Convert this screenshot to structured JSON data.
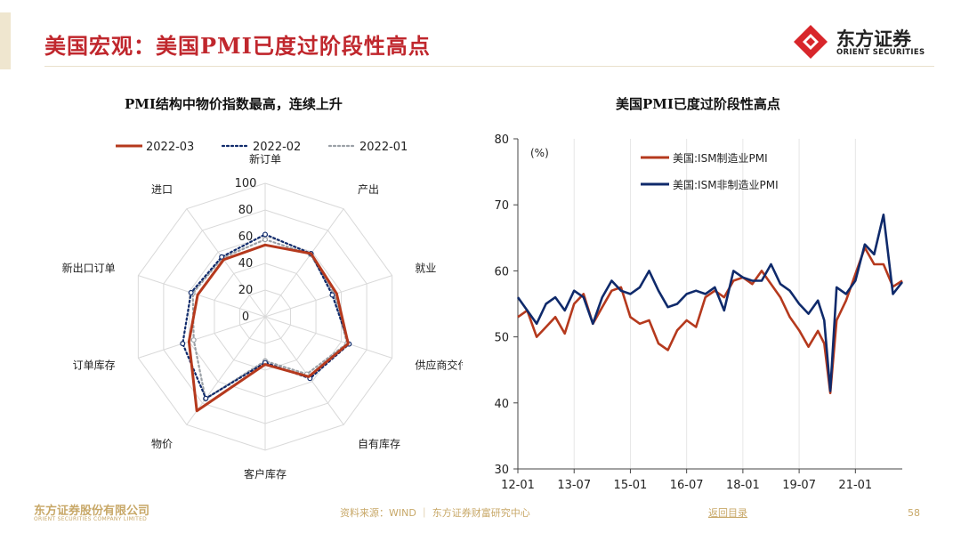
{
  "page": {
    "title": "美国宏观：美国PMI已度过阶段性高点",
    "logo_cn": "东方证券",
    "logo_en": "ORIENT SECURITIES",
    "footer_logo_cn": "东方证券股份有限公司",
    "footer_logo_en": "ORIENT SECURITIES COMPANY LIMITED",
    "source": "资料来源：WIND ｜ 东方证券财富研究中心",
    "back_link": "返回目录",
    "page_number": "58",
    "colors": {
      "title_red": "#c0272d",
      "series_red": "#b5391d",
      "series_navy": "#0f2a6b",
      "series_gray": "#9aa0a6",
      "footer_gold": "#c8a868"
    }
  },
  "chart_data": [
    {
      "type": "radar",
      "title": "PMI结构中物价指数最高，连续上升",
      "axes": [
        "新订单",
        "产出",
        "就业",
        "供应商交付",
        "自有库存",
        "客户库存",
        "物价",
        "订单库存",
        "新出口订单",
        "进口"
      ],
      "r_ticks": [
        "0",
        "20",
        "40",
        "60",
        "80",
        "100"
      ],
      "r_range": [
        0,
        100
      ],
      "legend_position": "top",
      "series": [
        {
          "name": "2022-03",
          "values": [
            53.8,
            58.5,
            56.3,
            65.4,
            55.5,
            35.7,
            87.1,
            60.0,
            53.2,
            52.9
          ]
        },
        {
          "name": "2022-02",
          "values": [
            61.7,
            58.5,
            52.9,
            66.1,
            57.1,
            34.4,
            75.6,
            65.0,
            58.4,
            55.4
          ]
        },
        {
          "name": "2022-01",
          "values": [
            57.9,
            57.8,
            54.5,
            64.6,
            53.1,
            33.1,
            76.1,
            56.3,
            57.0,
            54.6
          ]
        }
      ]
    },
    {
      "type": "line",
      "title": "美国PMI已度过阶段性高点",
      "unit_label": "(%)",
      "x_ticks": [
        "12-01",
        "13-07",
        "15-01",
        "16-07",
        "18-01",
        "19-07",
        "21-01"
      ],
      "x_range": [
        2012.0,
        2022.25
      ],
      "ylim": [
        30,
        80
      ],
      "y_ticks": [
        "30",
        "40",
        "50",
        "60",
        "70",
        "80"
      ],
      "legend_position": "top-left",
      "series": [
        {
          "name": "美国:ISM制造业PMI",
          "x": [
            2012.0,
            2012.25,
            2012.5,
            2012.75,
            2013.0,
            2013.25,
            2013.5,
            2013.75,
            2014.0,
            2014.25,
            2014.5,
            2014.75,
            2015.0,
            2015.25,
            2015.5,
            2015.75,
            2016.0,
            2016.25,
            2016.5,
            2016.75,
            2017.0,
            2017.25,
            2017.5,
            2017.75,
            2018.0,
            2018.25,
            2018.5,
            2018.75,
            2019.0,
            2019.25,
            2019.5,
            2019.75,
            2020.0,
            2020.17,
            2020.33,
            2020.5,
            2020.75,
            2021.0,
            2021.25,
            2021.5,
            2021.75,
            2022.0,
            2022.25
          ],
          "y": [
            53,
            54,
            50,
            51.5,
            53,
            50.5,
            55,
            56.5,
            52,
            54.5,
            57,
            57.5,
            53,
            52,
            52.5,
            49,
            48,
            51,
            52.5,
            51.5,
            56,
            57,
            56,
            58.5,
            59,
            58,
            60,
            58,
            56,
            53,
            51,
            48.5,
            50.9,
            49,
            41.5,
            52.5,
            55.5,
            59.5,
            63.5,
            61,
            61,
            57.6,
            58.5
          ]
        },
        {
          "name": "美国:ISM非制造业PMI",
          "x": [
            2012.0,
            2012.25,
            2012.5,
            2012.75,
            2013.0,
            2013.25,
            2013.5,
            2013.75,
            2014.0,
            2014.25,
            2014.5,
            2014.75,
            2015.0,
            2015.25,
            2015.5,
            2015.75,
            2016.0,
            2016.25,
            2016.5,
            2016.75,
            2017.0,
            2017.25,
            2017.5,
            2017.75,
            2018.0,
            2018.25,
            2018.5,
            2018.75,
            2019.0,
            2019.25,
            2019.5,
            2019.75,
            2020.0,
            2020.17,
            2020.33,
            2020.5,
            2020.75,
            2021.0,
            2021.25,
            2021.5,
            2021.75,
            2022.0,
            2022.25
          ],
          "y": [
            56,
            54,
            52,
            55,
            56,
            54,
            57,
            56,
            52,
            56,
            58.5,
            57,
            56.5,
            57.5,
            60,
            57,
            54.5,
            55,
            56.5,
            57,
            56.5,
            57.5,
            54,
            60,
            59,
            58.5,
            58.5,
            61,
            58,
            57,
            55,
            53.5,
            55.5,
            52.5,
            41.8,
            57.5,
            56.5,
            58.5,
            64,
            62.5,
            68.5,
            56.5,
            58.3
          ]
        }
      ]
    }
  ]
}
